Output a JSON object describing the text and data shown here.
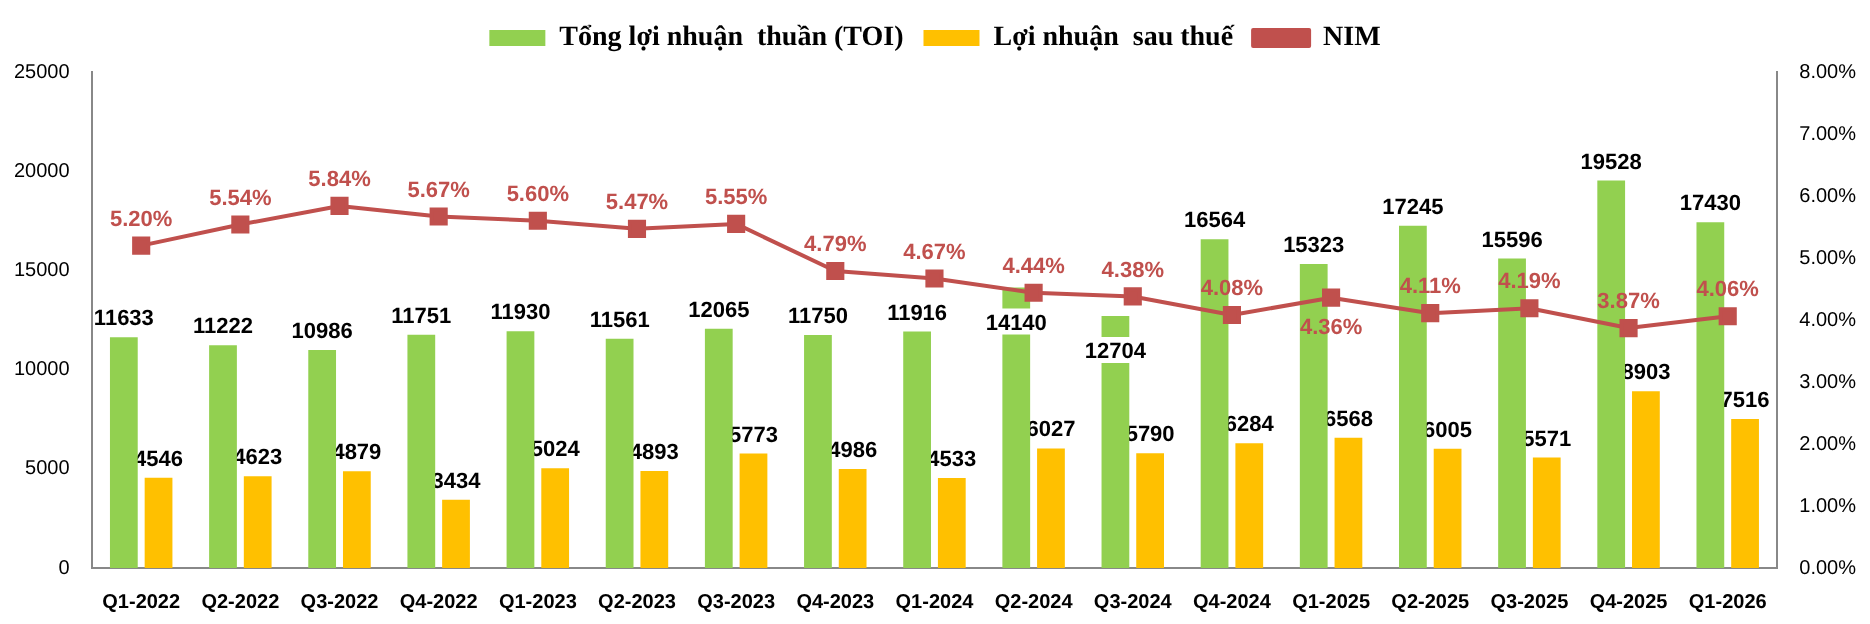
{
  "chart_data": {
    "type": "bar",
    "categories": [
      "Q1-2022",
      "Q2-2022",
      "Q3-2022",
      "Q4-2022",
      "Q1-2023",
      "Q2-2023",
      "Q3-2023",
      "Q4-2023",
      "Q1-2024",
      "Q2-2024",
      "Q3-2024",
      "Q4-2024",
      "Q1-2025",
      "Q2-2025",
      "Q3-2025",
      "Q4-2025",
      "Q1-2026"
    ],
    "series": [
      {
        "name": "Tổng lợi nhuận  thuần (TOI)",
        "color": "#92d050",
        "values": [
          11633,
          11222,
          10986,
          11751,
          11930,
          11561,
          12065,
          11750,
          11916,
          14140,
          12704,
          16564,
          15323,
          17245,
          15596,
          19528,
          17430
        ],
        "value_labels": [
          "11633",
          "11222",
          "10986",
          "11751",
          "11930",
          "11561",
          "12065",
          "11750",
          "11916",
          "14140",
          "12704",
          "16564",
          "15323",
          "17245",
          "15596",
          "19528",
          "17430"
        ]
      },
      {
        "name": "Lợi nhuận  sau thuế",
        "color": "#ffc000",
        "values": [
          4546,
          4623,
          4879,
          3434,
          5024,
          4893,
          5773,
          4986,
          4533,
          6027,
          5790,
          6284,
          6568,
          6005,
          5571,
          8903,
          7516
        ],
        "value_labels": [
          "4546",
          "4623",
          "4879",
          "3434",
          "5024",
          "4893",
          "5773",
          "4986",
          "4533",
          "6027",
          "5790",
          "6284",
          "6568",
          "6005",
          "5571",
          "8903",
          "7516"
        ]
      },
      {
        "name": "NIM",
        "type": "line",
        "axis": "y2",
        "color": "#c0504d",
        "values": [
          5.2,
          5.54,
          5.84,
          5.67,
          5.6,
          5.47,
          5.55,
          4.79,
          4.67,
          4.44,
          4.38,
          4.08,
          4.36,
          4.11,
          4.19,
          3.87,
          4.06
        ],
        "value_labels": [
          "5.20%",
          "5.54%",
          "5.84%",
          "5.67%",
          "5.60%",
          "5.47%",
          "5.55%",
          "4.79%",
          "4.67%",
          "4.44%",
          "4.38%",
          "4.08%",
          "4.36%",
          "4.11%",
          "4.19%",
          "3.87%",
          "4.06%"
        ]
      }
    ],
    "ylim": [
      0,
      25000
    ],
    "yticks": [
      0,
      5000,
      10000,
      15000,
      20000,
      25000
    ],
    "y2lim": [
      0,
      8
    ],
    "y2ticks": [
      {
        "value": 0,
        "label": "0.00%"
      },
      {
        "value": 1,
        "label": "1.00%"
      },
      {
        "value": 2,
        "label": "2.00%"
      },
      {
        "value": 3,
        "label": "3.00%"
      },
      {
        "value": 4,
        "label": "4.00%"
      },
      {
        "value": 5,
        "label": "5.00%"
      },
      {
        "value": 6,
        "label": "6.00%"
      },
      {
        "value": 7,
        "label": "7.00%"
      },
      {
        "value": 8,
        "label": "8.00%"
      }
    ],
    "grid": false,
    "legend": "top",
    "marker": "square",
    "line_style": "solid"
  }
}
